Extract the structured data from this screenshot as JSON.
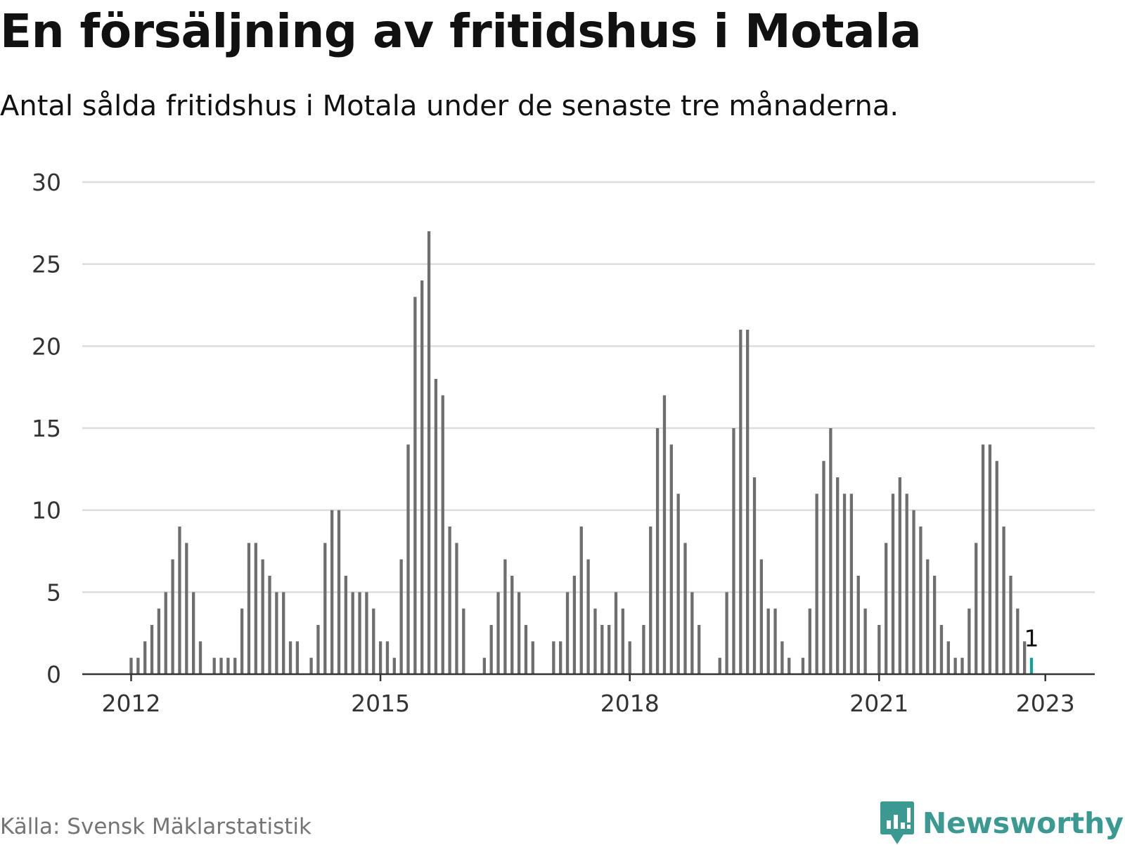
{
  "title": "En försäljning av fritidshus i Motala",
  "subtitle": "Antal sålda fritidshus i Motala under de senaste tre månaderna.",
  "source": "Källa: Svensk Mäklarstatistik",
  "brand": {
    "name": "Newsworthy",
    "icon": "newsworthy-logo-icon",
    "color": "#3a9a92"
  },
  "colors": {
    "bar": "#6e6e6e",
    "highlight": "#12a29a",
    "grid": "#dddddd",
    "axis": "#333333"
  },
  "chart_data": {
    "type": "bar",
    "title": "",
    "xlabel": "",
    "ylabel": "",
    "ylim": [
      0,
      30
    ],
    "yticks": [
      0,
      5,
      10,
      15,
      20,
      25,
      30
    ],
    "xticks": [
      "2012",
      "2015",
      "2018",
      "2021",
      "2023"
    ],
    "grid": true,
    "start": "2012-01",
    "end": "2023-01",
    "highlight_label": "1",
    "values": [
      1,
      1,
      2,
      3,
      4,
      5,
      7,
      9,
      8,
      5,
      2,
      0,
      1,
      1,
      1,
      1,
      4,
      8,
      8,
      7,
      6,
      5,
      5,
      2,
      2,
      0,
      1,
      3,
      8,
      10,
      10,
      6,
      5,
      5,
      5,
      4,
      2,
      2,
      1,
      7,
      14,
      23,
      24,
      27,
      18,
      17,
      9,
      8,
      4,
      0,
      0,
      1,
      3,
      5,
      7,
      6,
      5,
      3,
      2,
      0,
      0,
      2,
      2,
      5,
      6,
      9,
      7,
      4,
      3,
      3,
      5,
      4,
      2,
      0,
      3,
      9,
      15,
      17,
      14,
      11,
      8,
      5,
      3,
      0,
      0,
      1,
      5,
      15,
      21,
      21,
      12,
      7,
      4,
      4,
      2,
      1,
      0,
      1,
      4,
      11,
      13,
      15,
      12,
      11,
      11,
      6,
      4,
      0,
      3,
      8,
      11,
      12,
      11,
      10,
      9,
      7,
      6,
      3,
      2,
      1,
      1,
      4,
      8,
      14,
      14,
      13,
      9,
      6,
      4,
      2,
      1
    ]
  }
}
